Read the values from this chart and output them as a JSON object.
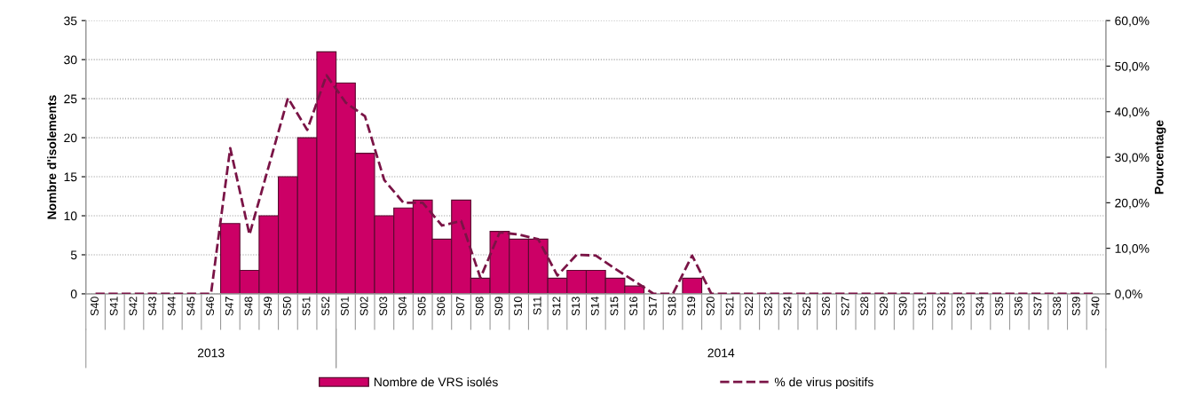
{
  "chart_data": {
    "type": "bar",
    "ylabel": "Nombre d'isolements",
    "y2label": "Pourcentage",
    "categories": [
      "S40",
      "S41",
      "S42",
      "S43",
      "S44",
      "S45",
      "S46",
      "S47",
      "S48",
      "S49",
      "S50",
      "S51",
      "S52",
      "S01",
      "S02",
      "S03",
      "S04",
      "S05",
      "S06",
      "S07",
      "S08",
      "S09",
      "S10",
      "S11",
      "S12",
      "S13",
      "S14",
      "S15",
      "S16",
      "S17",
      "S18",
      "S19",
      "S20",
      "S21",
      "S22",
      "S23",
      "S24",
      "S25",
      "S26",
      "S27",
      "S28",
      "S29",
      "S30",
      "S31",
      "S32",
      "S33",
      "S34",
      "S35",
      "S36",
      "S37",
      "S38",
      "S39",
      "S40"
    ],
    "series": [
      {
        "name": "Nombre de VRS isolés",
        "color": "#cc0066",
        "values": [
          0,
          0,
          0,
          0,
          0,
          0,
          0,
          9,
          3,
          10,
          15,
          20,
          31,
          27,
          18,
          10,
          11,
          12,
          7,
          12,
          2,
          8,
          7,
          7,
          2,
          3,
          3,
          2,
          1,
          0,
          0,
          2,
          0,
          0,
          0,
          0,
          0,
          0,
          0,
          0,
          0,
          0,
          0,
          0,
          0,
          0,
          0,
          0,
          0,
          0,
          0,
          0,
          0
        ]
      },
      {
        "name": "% de virus positifs",
        "type": "line",
        "axis": "y2",
        "color": "#7a1446",
        "line_style": "dashed",
        "values": [
          0,
          0,
          0,
          0,
          0,
          0,
          0,
          32,
          13,
          28,
          43,
          36,
          48,
          42,
          39,
          25,
          20,
          20,
          15,
          16,
          3.5,
          13.5,
          13,
          12,
          4,
          8.6,
          8.4,
          5.5,
          2.8,
          0,
          0,
          8.4,
          0,
          0,
          0,
          0,
          0,
          0,
          0,
          0,
          0,
          0,
          0,
          0,
          0,
          0,
          0,
          0,
          0,
          0,
          0,
          0,
          0
        ]
      }
    ],
    "ylim": [
      0,
      35
    ],
    "yticks": [
      0,
      5,
      10,
      15,
      20,
      25,
      30,
      35
    ],
    "y2lim": [
      0,
      60
    ],
    "y2ticks": [
      {
        "value": 0,
        "label": "0,0%"
      },
      {
        "value": 10,
        "label": "10,0%"
      },
      {
        "value": 20,
        "label": "20,0%"
      },
      {
        "value": 30,
        "label": "30,0%"
      },
      {
        "value": 40,
        "label": "40,0%"
      },
      {
        "value": 50,
        "label": "50,0%"
      },
      {
        "value": 60,
        "label": "60,0%"
      }
    ],
    "annotations": [
      "2013",
      "2014"
    ],
    "grid": "y",
    "legend": "bottom"
  }
}
